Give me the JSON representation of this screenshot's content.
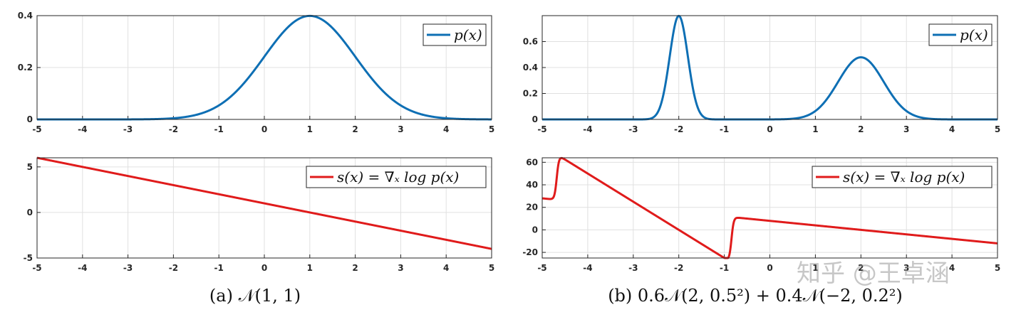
{
  "colors": {
    "density": "#0e6fb4",
    "score": "#e01b1b",
    "grid": "#e0e0e0",
    "axis": "#262626"
  },
  "chart_data": [
    {
      "id": "a_top",
      "type": "line",
      "function": "normal_pdf",
      "params": {
        "mu": 1,
        "sigma": 1
      },
      "xlim": [
        -5,
        5
      ],
      "ylim": [
        0,
        0.4
      ],
      "xticks": [
        -5,
        -4,
        -3,
        -2,
        -1,
        0,
        1,
        2,
        3,
        4,
        5
      ],
      "yticks": [
        0,
        0.2,
        0.4
      ],
      "xtick_labels": [
        "-5",
        "-4",
        "-3",
        "-2",
        "-1",
        "0",
        "1",
        "2",
        "3",
        "4",
        "5"
      ],
      "ytick_labels": [
        "0",
        "0.2",
        "0.4"
      ],
      "legend": "p(x)",
      "legend_position": "top-right",
      "grid": true,
      "series": [
        {
          "name": "p(x)",
          "color": "#0e6fb4"
        }
      ]
    },
    {
      "id": "a_bottom",
      "type": "line",
      "function": "normal_score",
      "params": {
        "mu": 1,
        "sigma": 1
      },
      "xlim": [
        -5,
        5
      ],
      "ylim": [
        -5,
        6
      ],
      "xticks": [
        -5,
        -4,
        -3,
        -2,
        -1,
        0,
        1,
        2,
        3,
        4,
        5
      ],
      "yticks": [
        -5,
        0,
        5
      ],
      "xtick_labels": [
        "-5",
        "-4",
        "-3",
        "-2",
        "-1",
        "0",
        "1",
        "2",
        "3",
        "4",
        "5"
      ],
      "ytick_labels": [
        "-5",
        "0",
        "5"
      ],
      "legend": "s(x) = ∇ₓ log p(x)",
      "legend_position": "top-right",
      "grid": true,
      "series": [
        {
          "name": "s(x) = ∇ₓ log p(x)",
          "color": "#e01b1b"
        }
      ]
    },
    {
      "id": "b_top",
      "type": "line",
      "function": "mixture_pdf",
      "params": {
        "components": [
          {
            "w": 0.6,
            "mu": 2,
            "sigma": 0.5
          },
          {
            "w": 0.4,
            "mu": -2,
            "sigma": 0.2
          }
        ]
      },
      "xlim": [
        -5,
        5
      ],
      "ylim": [
        0,
        0.8
      ],
      "xticks": [
        -5,
        -4,
        -3,
        -2,
        -1,
        0,
        1,
        2,
        3,
        4,
        5
      ],
      "yticks": [
        0,
        0.2,
        0.4,
        0.6
      ],
      "xtick_labels": [
        "-5",
        "-4",
        "-3",
        "-2",
        "-1",
        "0",
        "1",
        "2",
        "3",
        "4",
        "5"
      ],
      "ytick_labels": [
        "0",
        "0.2",
        "0.4",
        "0.6"
      ],
      "legend": "p(x)",
      "legend_position": "top-right",
      "grid": true,
      "series": [
        {
          "name": "p(x)",
          "color": "#0e6fb4"
        }
      ]
    },
    {
      "id": "b_bottom",
      "type": "line",
      "function": "mixture_score",
      "params": {
        "components": [
          {
            "w": 0.6,
            "mu": 2,
            "sigma": 0.5
          },
          {
            "w": 0.4,
            "mu": -2,
            "sigma": 0.2
          }
        ]
      },
      "xlim": [
        -5,
        5
      ],
      "ylim": [
        -25,
        64
      ],
      "xticks": [
        -5,
        -4,
        -3,
        -2,
        -1,
        0,
        1,
        2,
        3,
        4,
        5
      ],
      "yticks": [
        -20,
        0,
        20,
        40,
        60
      ],
      "xtick_labels": [
        "-5",
        "-4",
        "-3",
        "-2",
        "-1",
        "0",
        "1",
        "2",
        "3",
        "4",
        "5"
      ],
      "ytick_labels": [
        "-20",
        "0",
        "20",
        "40",
        "60"
      ],
      "legend": "s(x) = ∇ₓ log p(x)",
      "legend_position": "top-right",
      "grid": true,
      "series": [
        {
          "name": "s(x) = ∇ₓ log p(x)",
          "color": "#e01b1b"
        }
      ]
    }
  ],
  "captions": {
    "a": "(a) 𝒩(1, 1)",
    "b": "(b) 0.6𝒩(2, 0.5²) + 0.4𝒩(−2, 0.2²)"
  },
  "watermark": "知乎 @王卓涵"
}
